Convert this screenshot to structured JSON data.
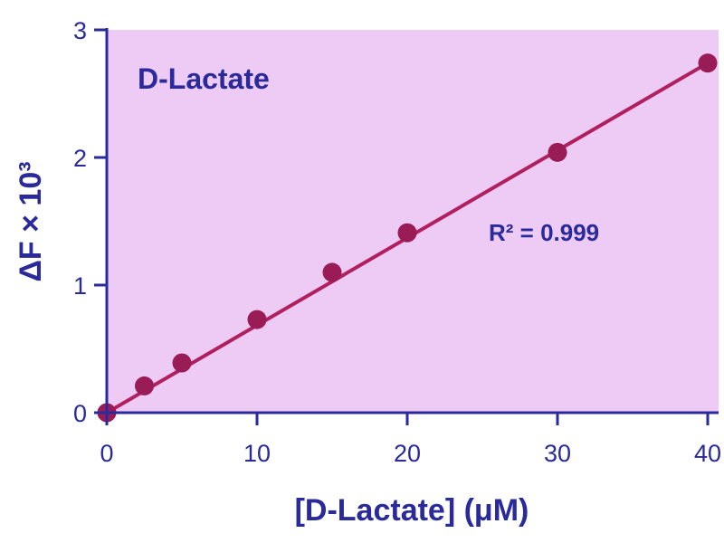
{
  "chart_data": {
    "type": "scatter",
    "title": "D-Lactate",
    "xlabel": "[D-Lactate] (μM)",
    "ylabel": "ΔF × 10³",
    "xlim": [
      0,
      40
    ],
    "ylim": [
      0,
      3
    ],
    "x_ticks": [
      "0",
      "10",
      "20",
      "30",
      "40"
    ],
    "y_ticks": [
      "0",
      "1",
      "2",
      "3"
    ],
    "points": [
      {
        "x": 0,
        "y": 0.0
      },
      {
        "x": 2.5,
        "y": 0.21
      },
      {
        "x": 5,
        "y": 0.39
      },
      {
        "x": 10,
        "y": 0.73
      },
      {
        "x": 15,
        "y": 1.1
      },
      {
        "x": 20,
        "y": 1.41
      },
      {
        "x": 30,
        "y": 2.04
      },
      {
        "x": 40,
        "y": 2.74
      }
    ],
    "fit_line": {
      "x": [
        0,
        40
      ],
      "y": [
        0.0,
        2.74
      ]
    },
    "annotation": "R² = 0.999",
    "grid": false,
    "colors": {
      "plot_background": "#eecbf4",
      "marker": "#9a1c56",
      "line": "#b0205f",
      "axis": "#2a2a9a",
      "text": "#2a2a9a"
    }
  }
}
